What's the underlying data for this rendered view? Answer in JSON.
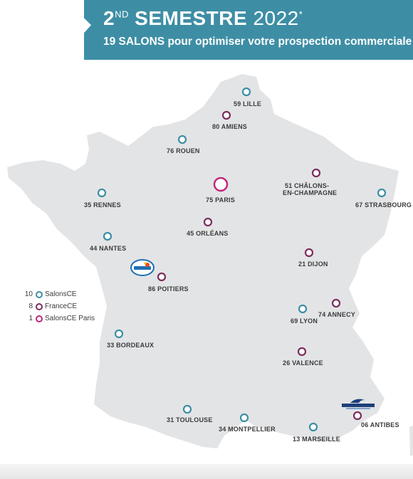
{
  "banner": {
    "semester_num": "2",
    "semester_sup": "ND",
    "semester_word": " SEMESTRE",
    "year": " 2022",
    "asterisk": "*",
    "subtitle": "19 SALONS pour optimiser votre prospection commerciale",
    "color": "#3d8ea5"
  },
  "colors": {
    "salonsce": "#3d8ea5",
    "francece": "#7b2d5e",
    "paris": "#c2277a",
    "land": "#e3e4e6"
  },
  "cities": {
    "lille": "59 LILLE",
    "amiens": "80 AMIENS",
    "rouen": "76 ROUEN",
    "paris": "75 PARIS",
    "chalons1": "51 CHÂLONS-",
    "chalons2": "EN-CHAMPAGNE",
    "strasbourg": "67 STRASBOURG",
    "rennes": "35 RENNES",
    "orleans": "45 ORLÉANS",
    "nantes": "44 NANTES",
    "dijon": "21 DIJON",
    "poitiers": "86 POITIERS",
    "annecy": "74 ANNECY",
    "lyon": "69 LYON",
    "bordeaux": "33 BORDEAUX",
    "valence": "26 VALENCE",
    "toulouse": "31 TOULOUSE",
    "montpellier": "34 MONTPELLIER",
    "marseille": "13 MARSEILLE",
    "antibes": "06 ANTIBES"
  },
  "legend": [
    {
      "count": "10",
      "label": "SalonsCE",
      "type": "salonsce"
    },
    {
      "count": "8",
      "label": "FranceCE",
      "type": "francece"
    },
    {
      "count": "1",
      "label": "SalonsCE Paris",
      "type": "paris"
    }
  ]
}
